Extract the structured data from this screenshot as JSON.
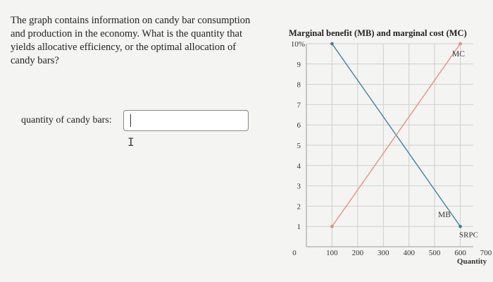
{
  "question": {
    "text": "The graph contains information on candy bar consumption and production in the economy. What is the quantity that yields allocative efficiency, or the optimal allocation of candy bars?",
    "answer_label": "quantity of candy bars:",
    "answer_value": ""
  },
  "chart_data": {
    "type": "line",
    "title": "Marginal benefit (MB) and marginal cost (MC)",
    "xlabel": "Quantity",
    "ylabel": "",
    "xlim": [
      0,
      700
    ],
    "ylim": [
      0,
      10
    ],
    "x_ticks": [
      "0",
      "100",
      "200",
      "300",
      "400",
      "500",
      "600",
      "700"
    ],
    "y_ticks": [
      "1",
      "2",
      "3",
      "4",
      "5",
      "6",
      "7",
      "8",
      "9",
      "10%"
    ],
    "grid": true,
    "series": [
      {
        "name": "MB",
        "color": "#2f7ea0",
        "points": [
          [
            100,
            10
          ],
          [
            600,
            1
          ]
        ]
      },
      {
        "name": "MC",
        "color": "#e88a76",
        "points": [
          [
            100,
            1
          ],
          [
            600,
            10
          ]
        ]
      }
    ],
    "annotations": [
      "SRPC"
    ]
  }
}
